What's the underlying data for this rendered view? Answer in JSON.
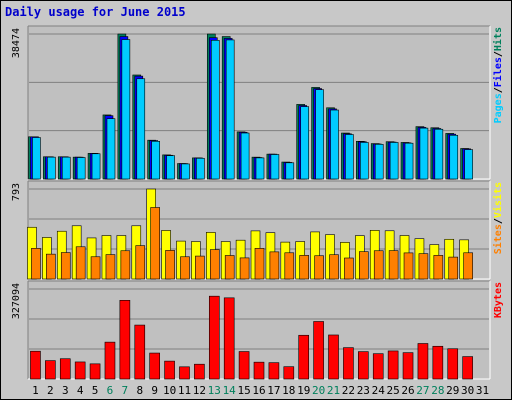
{
  "title": "Daily usage for June 2015",
  "colors": {
    "hits": "#00805c",
    "files": "#0000ff",
    "pages": "#00ccff",
    "visits": "#ffff00",
    "sites": "#ff8000",
    "kbytes": "#ff0000",
    "weekend_day": "#00805c",
    "weekday": "#000000",
    "panel_bg": "#c0c0c0"
  },
  "chart_data": [
    {
      "type": "bar",
      "panel": "pages-files-hits",
      "title": "",
      "ylabel_parts": [
        "Pages",
        "/",
        "Files",
        "/",
        "Hits"
      ],
      "y_max_label": "38474",
      "ylim": [
        0,
        38474
      ],
      "categories": [
        "1",
        "2",
        "3",
        "4",
        "5",
        "6",
        "7",
        "8",
        "9",
        "10",
        "11",
        "12",
        "13",
        "14",
        "15",
        "16",
        "17",
        "18",
        "19",
        "20",
        "21",
        "22",
        "23",
        "24",
        "25",
        "26",
        "27",
        "28",
        "29",
        "30",
        "31"
      ],
      "series": [
        {
          "name": "Hits",
          "values": [
            11200,
            5900,
            5900,
            5800,
            6800,
            17000,
            38474,
            27600,
            10300,
            6400,
            4100,
            5600,
            38474,
            37800,
            12500,
            5800,
            6600,
            4500,
            19800,
            24300,
            18900,
            12200,
            10000,
            9400,
            9900,
            9700,
            13900,
            13600,
            12100,
            8100,
            0
          ]
        },
        {
          "name": "Files",
          "values": [
            11200,
            5900,
            5900,
            5800,
            6800,
            16800,
            37800,
            27300,
            10200,
            6300,
            4100,
            5600,
            37500,
            37300,
            12400,
            5700,
            6600,
            4400,
            19500,
            24000,
            18600,
            12000,
            9900,
            9300,
            9800,
            9600,
            13700,
            13400,
            11900,
            8000,
            0
          ]
        },
        {
          "name": "Pages",
          "values": [
            11000,
            5800,
            5800,
            5700,
            6700,
            16000,
            37000,
            26600,
            10000,
            6200,
            4000,
            5500,
            36800,
            36900,
            12200,
            5600,
            6500,
            4300,
            19200,
            23700,
            18300,
            11800,
            9700,
            9200,
            9700,
            9500,
            13500,
            13200,
            11600,
            7800,
            0
          ]
        }
      ]
    },
    {
      "type": "bar",
      "panel": "sites-visits",
      "title": "",
      "ylabel_parts": [
        "Sites",
        "/",
        "Visits"
      ],
      "y_max_label": "793",
      "ylim": [
        0,
        793
      ],
      "categories": [
        "1",
        "2",
        "3",
        "4",
        "5",
        "6",
        "7",
        "8",
        "9",
        "10",
        "11",
        "12",
        "13",
        "14",
        "15",
        "16",
        "17",
        "18",
        "19",
        "20",
        "21",
        "22",
        "23",
        "24",
        "25",
        "26",
        "27",
        "28",
        "29",
        "30",
        "31"
      ],
      "series": [
        {
          "name": "Visits",
          "values": [
            456,
            366,
            421,
            469,
            362,
            383,
            383,
            469,
            793,
            428,
            334,
            330,
            411,
            330,
            342,
            424,
            408,
            325,
            330,
            415,
            391,
            323,
            382,
            429,
            425,
            383,
            355,
            303,
            350,
            345,
            0
          ]
        },
        {
          "name": "Sites",
          "values": [
            270,
            219,
            233,
            284,
            196,
            215,
            249,
            294,
            630,
            252,
            196,
            202,
            259,
            207,
            186,
            270,
            239,
            231,
            208,
            205,
            214,
            185,
            241,
            249,
            250,
            230,
            223,
            208,
            193,
            231,
            0
          ]
        }
      ]
    },
    {
      "type": "bar",
      "panel": "kbytes",
      "title": "",
      "ylabel_parts": [
        "KBytes"
      ],
      "y_max_label": "327094",
      "ylim": [
        0,
        327094
      ],
      "categories": [
        "1",
        "2",
        "3",
        "4",
        "5",
        "6",
        "7",
        "8",
        "9",
        "10",
        "11",
        "12",
        "13",
        "14",
        "15",
        "16",
        "17",
        "18",
        "19",
        "20",
        "21",
        "22",
        "23",
        "24",
        "25",
        "26",
        "27",
        "28",
        "29",
        "30",
        "31"
      ],
      "series": [
        {
          "name": "KBytes",
          "values": [
            101000,
            66800,
            73700,
            62000,
            55100,
            134000,
            286000,
            196000,
            94300,
            65000,
            44300,
            53800,
            301000,
            295000,
            99800,
            61200,
            59400,
            44700,
            159000,
            209000,
            160000,
            114000,
            99500,
            92000,
            102000,
            95800,
            129000,
            119000,
            110000,
            81500,
            0
          ]
        }
      ]
    }
  ],
  "weekend_days": [
    6,
    7,
    13,
    14,
    20,
    21,
    27,
    28
  ]
}
